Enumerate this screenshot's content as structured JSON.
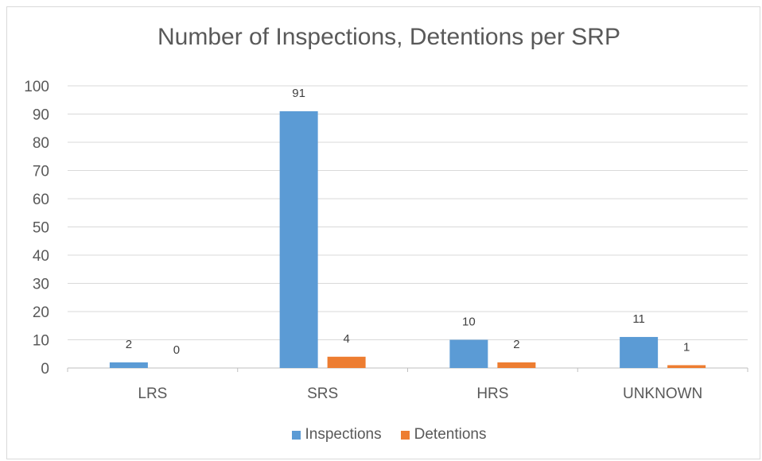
{
  "chart_data": {
    "type": "bar",
    "title": "Number of Inspections, Detentions per SRP",
    "categories": [
      "LRS",
      "SRS",
      "HRS",
      "UNKNOWN"
    ],
    "series": [
      {
        "name": "Inspections",
        "values": [
          2,
          91,
          10,
          11
        ],
        "color": "#5b9bd5"
      },
      {
        "name": "Detentions",
        "values": [
          0,
          4,
          2,
          1
        ],
        "color": "#ed7d31"
      }
    ],
    "ylim": [
      0,
      100
    ],
    "yticks": [
      0,
      10,
      20,
      30,
      40,
      50,
      60,
      70,
      80,
      90,
      100
    ],
    "grid": true,
    "legend_position": "bottom",
    "data_labels": true
  }
}
